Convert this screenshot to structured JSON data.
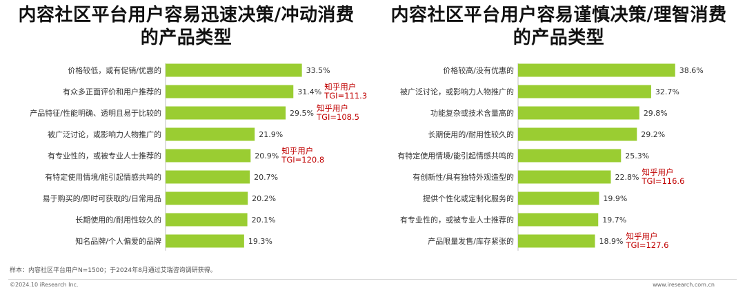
{
  "colors": {
    "bar": "#9acd32",
    "tgi": "#c00000"
  },
  "chart_data": [
    {
      "type": "bar",
      "orientation": "horizontal",
      "title": "内容社区平台用户容易迅速决策/冲动消费的产品类型",
      "categories": [
        "价格较低，或有促销/优惠的",
        "有众多正面评价和用户推荐的",
        "产品特征/性能明确、透明且易于比较的",
        "被广泛讨论，或影响力人物推广的",
        "有专业性的，或被专业人士推荐的",
        "有特定使用情境/能引起情感共鸣的",
        "易于购买的/即时可获取的/日常用品",
        "长期使用的/耐用性较久的",
        "知名品牌/个人偏爱的品牌"
      ],
      "values": [
        33.5,
        31.4,
        29.5,
        21.9,
        20.9,
        20.7,
        20.2,
        20.1,
        19.3
      ],
      "value_labels": [
        "33.5%",
        "31.4%",
        "29.5%",
        "21.9%",
        "20.9%",
        "20.7%",
        "20.2%",
        "20.1%",
        "19.3%"
      ],
      "annotations": [
        {
          "index": 1,
          "line1": "知乎用户",
          "line2": "TGI=111.3"
        },
        {
          "index": 2,
          "line1": "知乎用户",
          "line2": "TGI=108.5"
        },
        {
          "index": 4,
          "line1": "知乎用户",
          "line2": "TGI=120.8"
        }
      ]
    },
    {
      "type": "bar",
      "orientation": "horizontal",
      "title": "内容社区平台用户容易谨慎决策/理智消费的产品类型",
      "categories": [
        "价格较高/没有优惠的",
        "被广泛讨论，或影响力人物推广的",
        "功能复杂或技术含量高的",
        "长期使用的/耐用性较久的",
        "有特定使用情境/能引起情感共鸣的",
        "有创新性/具有独特外观造型的",
        "提供个性化或定制化服务的",
        "有专业性的，或被专业人士推荐的",
        "产品限量发售/库存紧张的"
      ],
      "values": [
        38.6,
        32.7,
        29.8,
        29.2,
        25.3,
        22.8,
        19.9,
        19.7,
        18.9
      ],
      "value_labels": [
        "38.6%",
        "32.7%",
        "29.8%",
        "29.2%",
        "25.3%",
        "22.8%",
        "19.9%",
        "19.7%",
        "18.9%"
      ],
      "annotations": [
        {
          "index": 5,
          "line1": "知乎用户",
          "line2": "TGI=116.6"
        },
        {
          "index": 8,
          "line1": "知乎用户",
          "line2": "TGI=127.6"
        }
      ]
    }
  ],
  "titles": {
    "left": "内容社区平台用户容易迅速决策/冲动消费的产品类型",
    "right": "内容社区平台用户容易谨慎决策/理智消费的产品类型"
  },
  "footer": {
    "note": "样本：内容社区平台用户N=1500；于2024年8月通过艾瑞咨询调研获得。",
    "copyright": "©2024.10 iResearch Inc.",
    "site": "www.iresearch.com.cn"
  }
}
